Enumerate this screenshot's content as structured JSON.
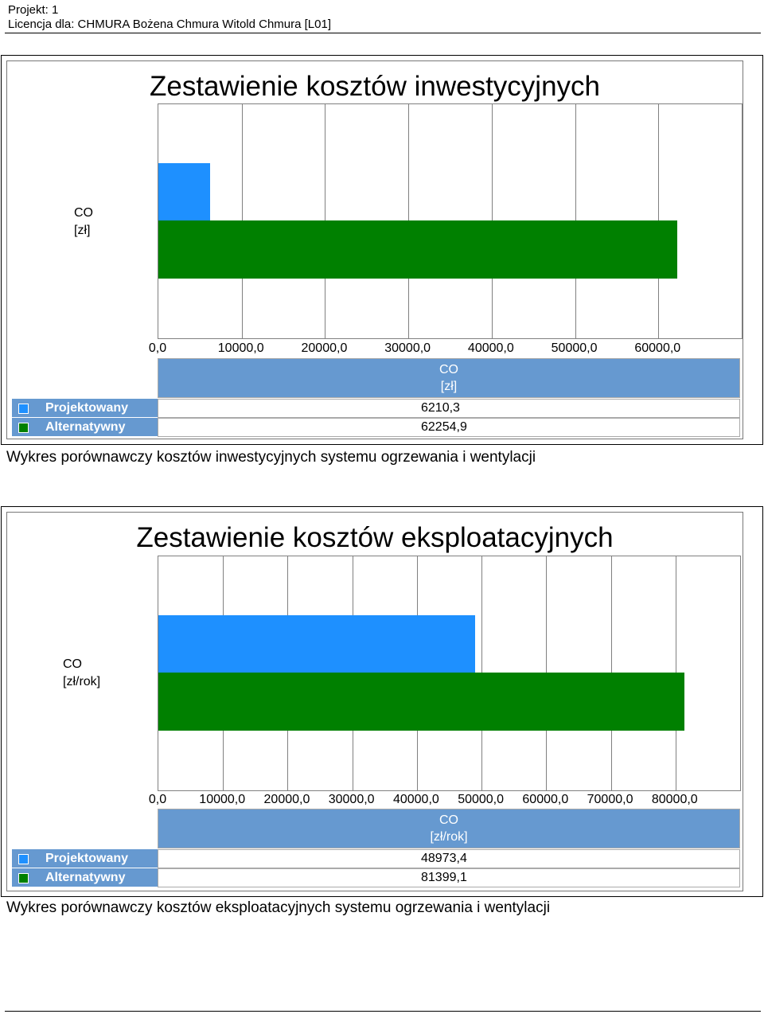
{
  "header": {
    "project": "Projekt: 1",
    "license": "Licencja dla: CHMURA Bożena Chmura Witold Chmura [L01]"
  },
  "colors": {
    "projektowany": "#1e90ff",
    "alternatywny": "#008000",
    "table_header": "#6699d0"
  },
  "chart_data": [
    {
      "type": "bar",
      "orientation": "horizontal",
      "title": "Zestawienie kosztów inwestycyjnych",
      "categories": [
        "CO\n[zł]"
      ],
      "category_lines": [
        "CO",
        "[zł]"
      ],
      "xlim": [
        0,
        70000
      ],
      "ticks": [
        "0,0",
        "10000,0",
        "20000,0",
        "30000,0",
        "40000,0",
        "50000,0",
        "60000,0"
      ],
      "series": [
        {
          "name": "Projektowany",
          "values": [
            6210.3
          ],
          "label": "6210,3"
        },
        {
          "name": "Alternatywny",
          "values": [
            62254.9
          ],
          "label": "62254,9"
        }
      ],
      "grid": true,
      "caption": "Wykres porównawczy kosztów inwestycyjnych systemu ogrzewania i wentylacji"
    },
    {
      "type": "bar",
      "orientation": "horizontal",
      "title": "Zestawienie kosztów eksploatacyjnych",
      "categories": [
        "CO\n[zł/rok]"
      ],
      "category_lines": [
        "CO",
        "[zł/rok]"
      ],
      "xlim": [
        0,
        90000
      ],
      "ticks": [
        "0,0",
        "10000,0",
        "20000,0",
        "30000,0",
        "40000,0",
        "50000,0",
        "60000,0",
        "70000,0",
        "80000,0"
      ],
      "series": [
        {
          "name": "Projektowany",
          "values": [
            48973.4
          ],
          "label": "48973,4"
        },
        {
          "name": "Alternatywny",
          "values": [
            81399.1
          ],
          "label": "81399,1"
        }
      ],
      "grid": true,
      "caption": "Wykres porównawczy kosztów eksploatacyjnych systemu ogrzewania i wentylacji"
    }
  ]
}
